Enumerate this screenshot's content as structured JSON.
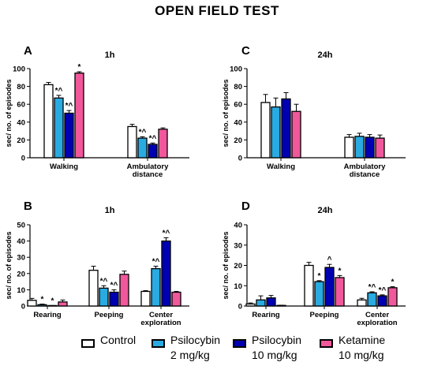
{
  "figure": {
    "title": "OPEN FIELD TEST",
    "legend": [
      {
        "label": "Control",
        "color": "#ffffff"
      },
      {
        "label": "Psilocybin\n2 mg/kg",
        "color": "#29abe2"
      },
      {
        "label": "Psilocybin\n10 mg/kg",
        "color": "#0000b3"
      },
      {
        "label": "Ketamine\n10 mg/kg",
        "color": "#f0589b"
      }
    ]
  },
  "chart_data": [
    {
      "type": "bar",
      "panel": "A",
      "title": "1h",
      "ylabel": "sec/ no. of episodes",
      "ylim": [
        0,
        100
      ],
      "yticks": [
        "0",
        "20",
        "40",
        "60",
        "80",
        "100"
      ],
      "categories": [
        "Walking",
        "Ambulatory\ndistance"
      ],
      "series": [
        {
          "color": "#ffffff",
          "values": [
            82,
            35
          ],
          "errors": [
            2.5,
            2.5
          ],
          "marks": [
            "",
            ""
          ]
        },
        {
          "color": "#29abe2",
          "values": [
            67,
            22
          ],
          "errors": [
            3,
            1.5
          ],
          "marks": [
            "*^",
            "*^"
          ]
        },
        {
          "color": "#0000b3",
          "values": [
            50,
            15
          ],
          "errors": [
            3,
            1.5
          ],
          "marks": [
            "*^",
            "*^"
          ]
        },
        {
          "color": "#f0589b",
          "values": [
            95,
            32
          ],
          "errors": [
            1.5,
            1.5
          ],
          "marks": [
            "*",
            ""
          ]
        }
      ]
    },
    {
      "type": "bar",
      "panel": "C",
      "title": "24h",
      "ylabel": "sec/ no. of episodes",
      "ylim": [
        0,
        100
      ],
      "yticks": [
        "0",
        "20",
        "40",
        "60",
        "80",
        "100"
      ],
      "categories": [
        "Walking",
        "Ambulatory\ndistance"
      ],
      "series": [
        {
          "color": "#ffffff",
          "values": [
            62,
            23
          ],
          "errors": [
            9,
            3
          ],
          "marks": [
            "",
            ""
          ]
        },
        {
          "color": "#29abe2",
          "values": [
            57,
            24
          ],
          "errors": [
            10,
            3.5
          ],
          "marks": [
            "",
            ""
          ]
        },
        {
          "color": "#0000b3",
          "values": [
            66,
            23
          ],
          "errors": [
            7,
            3
          ],
          "marks": [
            "",
            ""
          ]
        },
        {
          "color": "#f0589b",
          "values": [
            52,
            22
          ],
          "errors": [
            8,
            3.5
          ],
          "marks": [
            "",
            ""
          ]
        }
      ]
    },
    {
      "type": "bar",
      "panel": "B",
      "title": "1h",
      "ylabel": "sec/ no. of episodes",
      "ylim": [
        0,
        50
      ],
      "yticks": [
        "0",
        "10",
        "20",
        "30",
        "40",
        "50"
      ],
      "categories": [
        "Rearing",
        "Peeping",
        "Center\nexploration"
      ],
      "series": [
        {
          "color": "#ffffff",
          "values": [
            3.5,
            22,
            9
          ],
          "errors": [
            1.2,
            2.5,
            0.5
          ],
          "marks": [
            "",
            "",
            ""
          ]
        },
        {
          "color": "#29abe2",
          "values": [
            0.8,
            11,
            23
          ],
          "errors": [
            0.4,
            1.5,
            1.5
          ],
          "marks": [
            "*",
            "*^",
            "*^"
          ]
        },
        {
          "color": "#0000b3",
          "values": [
            0.2,
            8.5,
            40
          ],
          "errors": [
            0.1,
            1.5,
            2
          ],
          "marks": [
            "*",
            "*^",
            "*^"
          ]
        },
        {
          "color": "#f0589b",
          "values": [
            2.5,
            19.5,
            8.5
          ],
          "errors": [
            1.2,
            2,
            0.5
          ],
          "marks": [
            "",
            "",
            ""
          ]
        }
      ]
    },
    {
      "type": "bar",
      "panel": "D",
      "title": "24h",
      "ylabel": "sec/ no. of episodes",
      "ylim": [
        0,
        40
      ],
      "yticks": [
        "0",
        "10",
        "20",
        "30",
        "40"
      ],
      "categories": [
        "Rearing",
        "Peeping",
        "Center\nexploration"
      ],
      "series": [
        {
          "color": "#ffffff",
          "values": [
            1,
            20,
            3
          ],
          "errors": [
            0.5,
            1.5,
            0.8
          ],
          "marks": [
            "",
            "",
            ""
          ]
        },
        {
          "color": "#29abe2",
          "values": [
            3,
            12,
            6.5
          ],
          "errors": [
            2,
            0.5,
            0.5
          ],
          "marks": [
            "",
            "*",
            "*^"
          ]
        },
        {
          "color": "#0000b3",
          "values": [
            4,
            19,
            5
          ],
          "errors": [
            1.2,
            1.5,
            0.5
          ],
          "marks": [
            "",
            "^",
            "*^"
          ]
        },
        {
          "color": "#f0589b",
          "values": [
            0.3,
            14,
            9
          ],
          "errors": [
            0.1,
            1,
            0.5
          ],
          "marks": [
            "",
            "*",
            "*"
          ]
        }
      ]
    }
  ]
}
